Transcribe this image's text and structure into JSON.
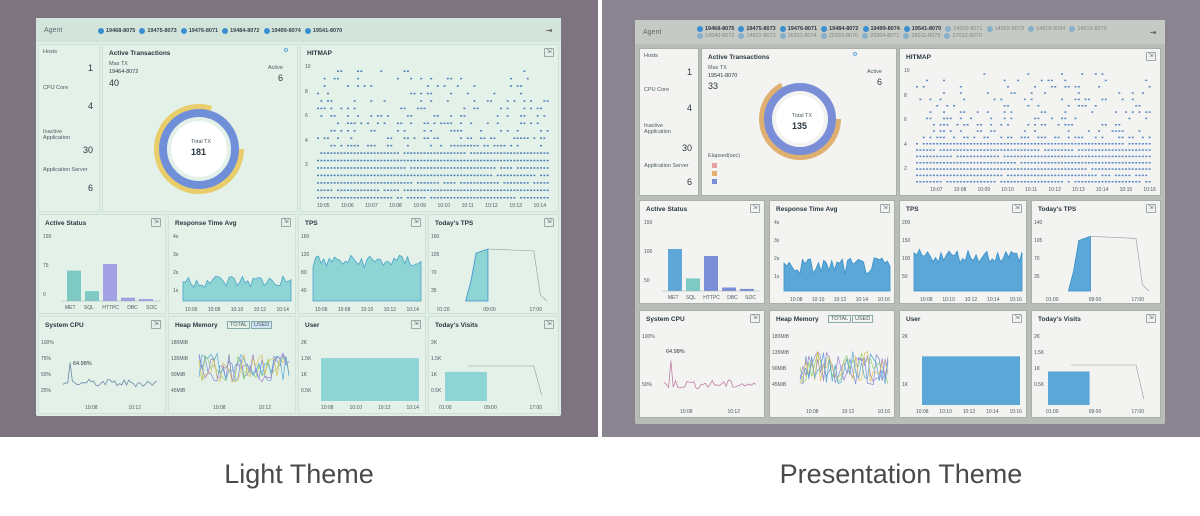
{
  "captions": {
    "left": "Light Theme",
    "right": "Presentation Theme"
  },
  "topbar": {
    "agent_label": "Agent",
    "left_agents": [
      "19468-8075",
      "19475-8073",
      "19476-8071",
      "19484-8072",
      "19499-8074",
      "19541-8070"
    ],
    "right_agents_row1": [
      "19468-8075",
      "19475-8073",
      "19476-8071",
      "19484-8072",
      "19499-8074",
      "19541-8070",
      "14500-8071",
      "14502-8073",
      "14818-8094"
    ],
    "right_agents_row2": [
      "14519-8070",
      "14540-8072",
      "14822-8071",
      "26911-8074",
      "26933-8070",
      "29364-8071",
      "28911-8079",
      "27012-8070"
    ],
    "pin_icon": "pin-icon"
  },
  "left": {
    "stats": {
      "hosts_label": "Hosts",
      "hosts": "1",
      "cpu_label": "CPU Core",
      "cpu": "4",
      "inactive_label": "Inactive Application",
      "inactive": "30",
      "server_label": "Application Server",
      "server": "6"
    },
    "active_tx": {
      "title": "Active Transactions",
      "max_label": "Max TX",
      "max_agent": "19464-8072",
      "max_value": "40",
      "active_label": "Active",
      "active_value": "6",
      "total_label": "Total TX",
      "total": "181"
    },
    "hitmap": {
      "title": "HITMAP",
      "yticks": [
        "10",
        "8",
        "6",
        "4",
        "2"
      ],
      "xticks": [
        "10:05",
        "10:06",
        "10:07",
        "10:08",
        "10:09",
        "10:10",
        "10:11",
        "10:12",
        "10:13",
        "10:14"
      ]
    },
    "active_status": {
      "title": "Active Status",
      "yticks": [
        "150",
        "75",
        "0"
      ],
      "cats": [
        "MET",
        "SQL",
        "HTTPC",
        "DBC",
        "SOC"
      ]
    },
    "resp": {
      "title": "Response Time Avg",
      "yticks": [
        "4s",
        "3s",
        "2s",
        "1s"
      ],
      "xticks": [
        "10:06",
        "10:08",
        "10:10",
        "10:12",
        "10:14"
      ]
    },
    "tps": {
      "title": "TPS",
      "yticks": [
        "160",
        "120",
        "80",
        "40"
      ],
      "xticks": [
        "10:06",
        "10:08",
        "10:10",
        "10:12",
        "10:14"
      ]
    },
    "today_tps": {
      "title": "Today's TPS",
      "yticks": [
        "160",
        "105",
        "70",
        "35"
      ],
      "xticks": [
        "01:20",
        "09:00",
        "17:00"
      ]
    },
    "cpu_chart": {
      "title": "System CPU",
      "yticks": [
        "100%",
        "75%",
        "50%",
        "25%"
      ],
      "peak": "64.98%",
      "xticks": [
        "10:08",
        "10:12"
      ]
    },
    "heap": {
      "title": "Heap Memory",
      "total_btn": "TOTAL",
      "used_btn": "USED",
      "yticks": [
        "180MiB",
        "135MiB",
        "90MiB",
        "45MiB"
      ],
      "xticks": [
        "10:08",
        "10:12"
      ]
    },
    "user": {
      "title": "User",
      "yticks": [
        "2K",
        "1.5K",
        "1K",
        "0.5K"
      ],
      "xticks": [
        "10:08",
        "10:10",
        "10:12",
        "10:14"
      ]
    },
    "visits": {
      "title": "Today's Visits",
      "yticks": [
        "2K",
        "1.5K",
        "1K",
        "0.5K"
      ],
      "xticks": [
        "01:00",
        "09:00",
        "17:00"
      ]
    }
  },
  "right": {
    "stats": {
      "hosts_label": "Hosts",
      "hosts": "1",
      "cpu_label": "CPU Core",
      "cpu": "4",
      "inactive_label": "Inactive Application",
      "inactive": "30",
      "server_label": "Application Server",
      "server": "6"
    },
    "active_tx": {
      "title": "Active Transactions",
      "max_label": "Max TX",
      "max_agent": "19541-8070",
      "max_value": "33",
      "active_label": "Active",
      "active_value": "6",
      "total_label": "Total TX",
      "total": "135",
      "elapsed_label": "Elapsed(sec)"
    },
    "hitmap": {
      "title": "HITMAP",
      "yticks": [
        "10",
        "8",
        "6",
        "4",
        "2"
      ],
      "xticks": [
        "10:07",
        "10:08",
        "10:09",
        "10:10",
        "10:11",
        "10:12",
        "10:13",
        "10:14",
        "10:15",
        "10:16"
      ]
    },
    "active_status": {
      "title": "Active Status",
      "yticks": [
        "150",
        "100",
        "50"
      ],
      "cats": [
        "MET",
        "SQL",
        "HTTPC",
        "DBC",
        "SOC"
      ]
    },
    "resp": {
      "title": "Response Time Avg",
      "yticks": [
        "4s",
        "3s",
        "2s",
        "1s"
      ],
      "xticks": [
        "10:08",
        "10:10",
        "10:12",
        "10:14",
        "10:16"
      ]
    },
    "tps": {
      "title": "TPS",
      "yticks": [
        "200",
        "150",
        "100",
        "50"
      ],
      "xticks": [
        "10:08",
        "10:10",
        "10:12",
        "10:14",
        "10:16"
      ]
    },
    "today_tps": {
      "title": "Today's TPS",
      "yticks": [
        "140",
        "105",
        "70",
        "35"
      ],
      "xticks": [
        "01:00",
        "09:00",
        "17:00"
      ]
    },
    "cpu_chart": {
      "title": "System CPU",
      "yticks": [
        "100%",
        "50%"
      ],
      "peak": "64.98%",
      "xticks": [
        "10:08",
        "10:12"
      ]
    },
    "heap": {
      "title": "Heap Memory",
      "total_btn": "TOTAL",
      "used_btn": "USED",
      "yticks": [
        "180MiB",
        "135MiB",
        "90MiB",
        "45MiB"
      ],
      "xticks": [
        "10:08",
        "10:12",
        "10:16"
      ]
    },
    "user": {
      "title": "User",
      "yticks": [
        "2K",
        "1K"
      ],
      "xticks": [
        "10:08",
        "10:10",
        "10:12",
        "10:14",
        "10:16"
      ]
    },
    "visits": {
      "title": "Today's Visits",
      "yticks": [
        "2K",
        "1.5K",
        "1K",
        "0.5K"
      ],
      "xticks": [
        "01:00",
        "09:00",
        "17:00"
      ]
    }
  }
}
